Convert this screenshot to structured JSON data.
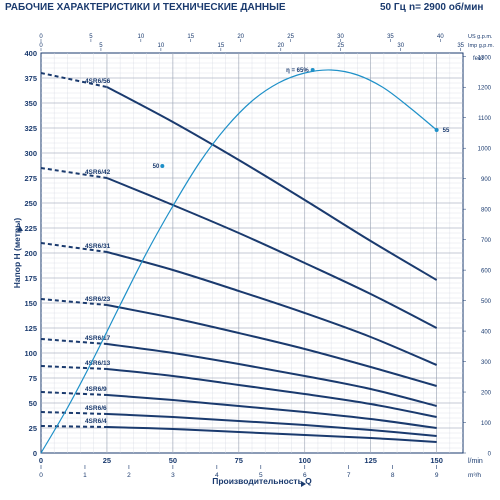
{
  "header": {
    "title": "РАБОЧИЕ ХАРАКТЕРИСТИКИ И ТЕХНИЧЕСКИЕ ДАННЫЕ",
    "frequency": "50 Гц",
    "speed": "n= 2900 об/мин"
  },
  "chart_data": {
    "type": "line",
    "xlabel": "Производительность Q",
    "x_unit": "l/min",
    "ylabel": "Напор H (метры)",
    "y2_unit": "feet",
    "top_axes": [
      {
        "unit": "US g.p.m.",
        "ticks": [
          0,
          5,
          10,
          15,
          20,
          25,
          30,
          35,
          40
        ]
      },
      {
        "unit": "Imp g.p.m.",
        "ticks": [
          0,
          5,
          10,
          15,
          20,
          25,
          30,
          35
        ]
      }
    ],
    "bottom_axis_secondary": {
      "unit": "m³/h",
      "ticks": [
        0,
        1,
        2,
        3,
        4,
        5,
        6,
        7,
        8,
        9
      ]
    },
    "xlim": [
      0,
      160
    ],
    "ylim": [
      0,
      400
    ],
    "x_ticks": [
      0,
      25,
      50,
      75,
      100,
      125,
      150
    ],
    "y_ticks": [
      0,
      25,
      50,
      75,
      100,
      125,
      150,
      175,
      200,
      225,
      250,
      275,
      300,
      325,
      350,
      375,
      400
    ],
    "y2_ticks": [
      0,
      100,
      200,
      300,
      400,
      500,
      600,
      700,
      800,
      900,
      1000,
      1100,
      1200,
      1300
    ],
    "grid": true,
    "colors": {
      "curve": "#1a3a6e",
      "efficiency": "#1e90c8",
      "text": "#1a3a6e"
    },
    "series": [
      {
        "name": "4SR6/56",
        "dashed": [
          [
            0,
            380
          ],
          [
            25,
            366
          ]
        ],
        "x": [
          25,
          50,
          75,
          100,
          125,
          150
        ],
        "y": [
          366,
          331,
          293,
          253,
          212,
          173
        ]
      },
      {
        "name": "4SR6/42",
        "dashed": [
          [
            0,
            285
          ],
          [
            25,
            275
          ]
        ],
        "x": [
          25,
          50,
          75,
          100,
          125,
          150
        ],
        "y": [
          275,
          248,
          220,
          190,
          159,
          125
        ]
      },
      {
        "name": "4SR6/31",
        "dashed": [
          [
            0,
            210
          ],
          [
            25,
            201
          ]
        ],
        "x": [
          25,
          50,
          75,
          100,
          125,
          150
        ],
        "y": [
          201,
          183,
          162,
          140,
          116,
          88
        ]
      },
      {
        "name": "4SR6/23",
        "dashed": [
          [
            0,
            154
          ],
          [
            25,
            148
          ]
        ],
        "x": [
          25,
          50,
          75,
          100,
          125,
          150
        ],
        "y": [
          148,
          135,
          120,
          104,
          86,
          67
        ]
      },
      {
        "name": "4SR6/17",
        "dashed": [
          [
            0,
            114
          ],
          [
            25,
            109
          ]
        ],
        "x": [
          25,
          50,
          75,
          100,
          125,
          150
        ],
        "y": [
          109,
          100,
          89,
          77,
          64,
          47
        ]
      },
      {
        "name": "4SR6/13",
        "dashed": [
          [
            0,
            87
          ],
          [
            25,
            84
          ]
        ],
        "x": [
          25,
          50,
          75,
          100,
          125,
          150
        ],
        "y": [
          84,
          77,
          68,
          59,
          49,
          36
        ]
      },
      {
        "name": "4SR6/9",
        "dashed": [
          [
            0,
            61
          ],
          [
            25,
            58
          ]
        ],
        "x": [
          25,
          50,
          75,
          100,
          125,
          150
        ],
        "y": [
          58,
          53,
          47,
          41,
          34,
          25
        ]
      },
      {
        "name": "4SR6/6",
        "dashed": [
          [
            0,
            41
          ],
          [
            25,
            39
          ]
        ],
        "x": [
          25,
          50,
          75,
          100,
          125,
          150
        ],
        "y": [
          39,
          36,
          32,
          28,
          23,
          17
        ]
      },
      {
        "name": "4SR6/4",
        "dashed": [
          [
            0,
            27
          ],
          [
            25,
            26
          ]
        ],
        "x": [
          25,
          50,
          75,
          100,
          125,
          150
        ],
        "y": [
          26,
          24,
          21,
          18,
          15,
          11
        ]
      }
    ],
    "efficiency_curve": {
      "x": [
        0,
        10,
        20,
        30,
        40,
        50,
        60,
        70,
        80,
        90,
        100,
        110,
        120,
        130,
        140,
        150
      ],
      "y": [
        0,
        45,
        95,
        148,
        200,
        247,
        290,
        325,
        352,
        370,
        380,
        383,
        378,
        365,
        345,
        323
      ],
      "labels": [
        {
          "text": "50",
          "x": 46,
          "y": 287
        },
        {
          "text": "η = 65%",
          "x": 103,
          "y": 383
        },
        {
          "text": "55",
          "x": 150,
          "y": 323
        }
      ]
    }
  }
}
